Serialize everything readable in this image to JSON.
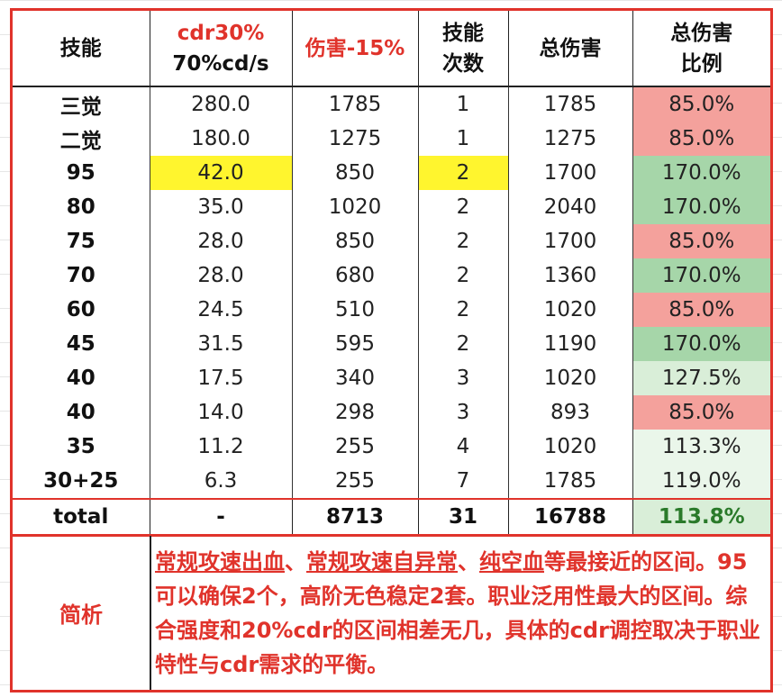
{
  "header": {
    "skill": "技能",
    "cdr_line1": "cdr30%",
    "cdr_line2": "70%cd/s",
    "damage": "伤害-15%",
    "count_line1": "技能",
    "count_line2": "次数",
    "total_damage": "总伤害",
    "ratio_line1": "总伤害",
    "ratio_line2": "比例"
  },
  "rows": [
    {
      "skill": "三觉",
      "cd": "280.0",
      "damage": "1785",
      "count": "1",
      "total": "1785",
      "ratio": "85.0%",
      "ratio_color": "red"
    },
    {
      "skill": "二觉",
      "cd": "180.0",
      "damage": "1275",
      "count": "1",
      "total": "1275",
      "ratio": "85.0%",
      "ratio_color": "red"
    },
    {
      "skill": "95",
      "cd": "42.0",
      "damage": "850",
      "count": "2",
      "total": "1700",
      "ratio": "170.0%",
      "ratio_color": "green",
      "highlight": true
    },
    {
      "skill": "80",
      "cd": "35.0",
      "damage": "1020",
      "count": "2",
      "total": "2040",
      "ratio": "170.0%",
      "ratio_color": "green"
    },
    {
      "skill": "75",
      "cd": "28.0",
      "damage": "850",
      "count": "2",
      "total": "1700",
      "ratio": "85.0%",
      "ratio_color": "red"
    },
    {
      "skill": "70",
      "cd": "28.0",
      "damage": "680",
      "count": "2",
      "total": "1360",
      "ratio": "170.0%",
      "ratio_color": "green"
    },
    {
      "skill": "60",
      "cd": "24.5",
      "damage": "510",
      "count": "2",
      "total": "1020",
      "ratio": "85.0%",
      "ratio_color": "red"
    },
    {
      "skill": "45",
      "cd": "31.5",
      "damage": "595",
      "count": "2",
      "total": "1190",
      "ratio": "170.0%",
      "ratio_color": "green"
    },
    {
      "skill": "40",
      "cd": "17.5",
      "damage": "340",
      "count": "3",
      "total": "1020",
      "ratio": "127.5%",
      "ratio_color": "lgreen"
    },
    {
      "skill": "40",
      "cd": "14.0",
      "damage": "298",
      "count": "3",
      "total": "893",
      "ratio": "85.0%",
      "ratio_color": "red"
    },
    {
      "skill": "35",
      "cd": "11.2",
      "damage": "255",
      "count": "4",
      "total": "1020",
      "ratio": "113.3%",
      "ratio_color": "vlgreen"
    },
    {
      "skill": "30+25",
      "cd": "6.3",
      "damage": "255",
      "count": "7",
      "total": "1785",
      "ratio": "119.0%",
      "ratio_color": "vlgreen"
    }
  ],
  "total": {
    "label": "total",
    "cd": "-",
    "damage": "8713",
    "count": "31",
    "total": "16788",
    "ratio": "113.8%"
  },
  "summary": {
    "label": "简析",
    "link1": "常规攻速出血",
    "sep1": "、",
    "link2": "常规攻速自异常",
    "sep2": "、",
    "link3": "纯空血",
    "text": "等最接近的区间。95可以确保2个，高阶无色稳定2套。职业泛用性最大的区间。综合强度和20%cdr的区间相差无几，具体的cdr调控取决于职业特性与cdr需求的平衡。"
  },
  "colors": {
    "accent_red": "#e0332b",
    "highlight_yellow": "#fff52e",
    "ratio_red_bg": "#f4a19c",
    "ratio_green_bg": "#a6d6a9"
  }
}
